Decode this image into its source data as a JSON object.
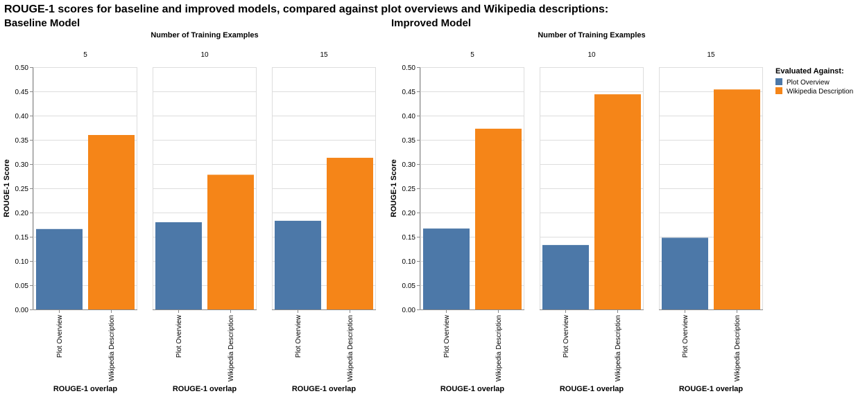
{
  "title": "ROUGE-1 scores for baseline and improved models, compared against plot overviews and Wikipedia descriptions:",
  "colors": {
    "plot_overview": "#4c78a8",
    "wikipedia_description": "#f58518"
  },
  "legend": {
    "title": "Evaluated Against:",
    "items": [
      "Plot Overview",
      "Wikipedia Description"
    ]
  },
  "chart_data": [
    {
      "type": "bar",
      "title": "Baseline Model",
      "facet_title": "Number of Training Examples",
      "xlabel": "ROUGE-1 overlap",
      "ylabel": "ROUGE-1 Score",
      "ylim": [
        0,
        0.5
      ],
      "yticks": [
        "0.00",
        "0.05",
        "0.10",
        "0.15",
        "0.20",
        "0.25",
        "0.30",
        "0.35",
        "0.40",
        "0.45",
        "0.50"
      ],
      "categories": [
        "Plot Overview",
        "Wikipedia Description"
      ],
      "facets": [
        {
          "label": "5",
          "values": [
            0.166,
            0.36
          ]
        },
        {
          "label": "10",
          "values": [
            0.18,
            0.278
          ]
        },
        {
          "label": "15",
          "values": [
            0.183,
            0.313
          ]
        }
      ]
    },
    {
      "type": "bar",
      "title": "Improved Model",
      "facet_title": "Number of Training Examples",
      "xlabel": "ROUGE-1 overlap",
      "ylabel": "ROUGE-1 Score",
      "ylim": [
        0,
        0.5
      ],
      "yticks": [
        "0.00",
        "0.05",
        "0.10",
        "0.15",
        "0.20",
        "0.25",
        "0.30",
        "0.35",
        "0.40",
        "0.45",
        "0.50"
      ],
      "categories": [
        "Plot Overview",
        "Wikipedia Description"
      ],
      "facets": [
        {
          "label": "5",
          "values": [
            0.167,
            0.373
          ]
        },
        {
          "label": "10",
          "values": [
            0.133,
            0.444
          ]
        },
        {
          "label": "15",
          "values": [
            0.148,
            0.454
          ]
        }
      ]
    }
  ]
}
